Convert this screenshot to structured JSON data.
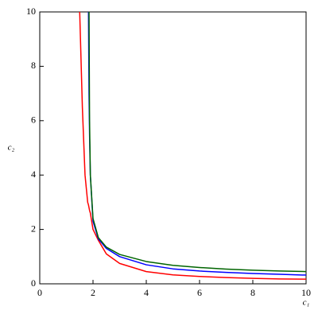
{
  "chart_data": {
    "type": "line",
    "x_label": "c₁",
    "y_label": "c₂",
    "x": [
      1.5,
      1.6,
      1.7,
      1.8,
      1.83,
      1.85,
      1.87,
      1.9,
      2,
      2.2,
      2.5,
      3,
      4,
      5,
      6,
      7,
      8,
      9,
      10
    ],
    "series": [
      {
        "color": "#ff0000",
        "values": [
          10,
          6.5,
          4.0,
          3.0,
          2.9,
          2.8,
          2.7,
          2.6,
          2.0,
          1.6,
          1.1,
          0.75,
          0.45,
          0.33,
          0.27,
          0.23,
          0.2,
          0.18,
          0.17
        ]
      },
      {
        "color": "#0000ff",
        "values": [
          null,
          null,
          null,
          null,
          10,
          7,
          5.5,
          4,
          2.3,
          1.65,
          1.3,
          1.0,
          0.7,
          0.55,
          0.47,
          0.42,
          0.38,
          0.35,
          0.32
        ]
      },
      {
        "color": "#006400",
        "values": [
          null,
          null,
          null,
          null,
          null,
          10,
          6,
          4,
          2.4,
          1.7,
          1.35,
          1.08,
          0.82,
          0.68,
          0.6,
          0.54,
          0.5,
          0.47,
          0.45
        ]
      }
    ],
    "xlim": [
      0,
      10
    ],
    "ylim": [
      0,
      10
    ],
    "xticks": [
      0,
      2,
      4,
      6,
      8,
      10
    ],
    "yticks": [
      0,
      2,
      4,
      6,
      8,
      10
    ]
  }
}
